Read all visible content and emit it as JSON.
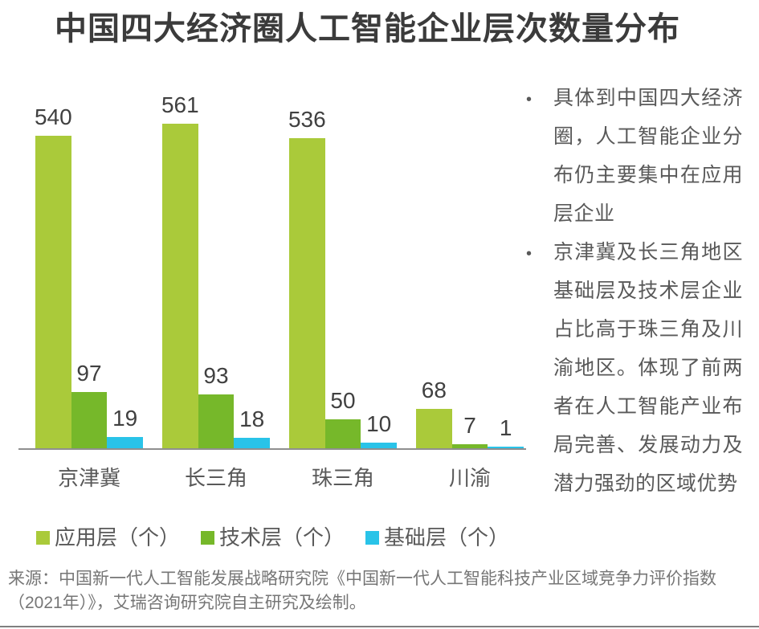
{
  "title": "中国四大经济圈人工智能企业层次数量分布",
  "chart_data": {
    "type": "bar",
    "categories": [
      "京津冀",
      "长三角",
      "珠三角",
      "川渝"
    ],
    "series": [
      {
        "name": "应用层（个）",
        "color": "#aaca3a",
        "values": [
          540,
          561,
          536,
          68
        ]
      },
      {
        "name": "技术层（个）",
        "color": "#76b82a",
        "values": [
          97,
          93,
          50,
          7
        ]
      },
      {
        "name": "基础层（个）",
        "color": "#29c3e8",
        "values": [
          19,
          18,
          10,
          1
        ]
      }
    ],
    "ylim": [
      0,
      561
    ],
    "grid": false,
    "legend_position": "bottom",
    "axis_line_color": "#8f8f8f",
    "value_labels_shown": true
  },
  "notes": {
    "bullets": [
      "具体到中国四大经济圈，人工智能企业分布仍主要集中在应用层企业",
      "京津冀及长三角地区基础层及技术层企业占比高于珠三角及川渝地区。体现了前两者在人工智能产业布局完善、发展动力及潜力强劲的区域优势"
    ],
    "bullet_marker": "•"
  },
  "source": "来源：中国新一代人工智能发展战略研究院《中国新一代人工智能科技产业区域竞争力评价指数（2021年）》，艾瑞咨询研究院自主研究及绘制。"
}
